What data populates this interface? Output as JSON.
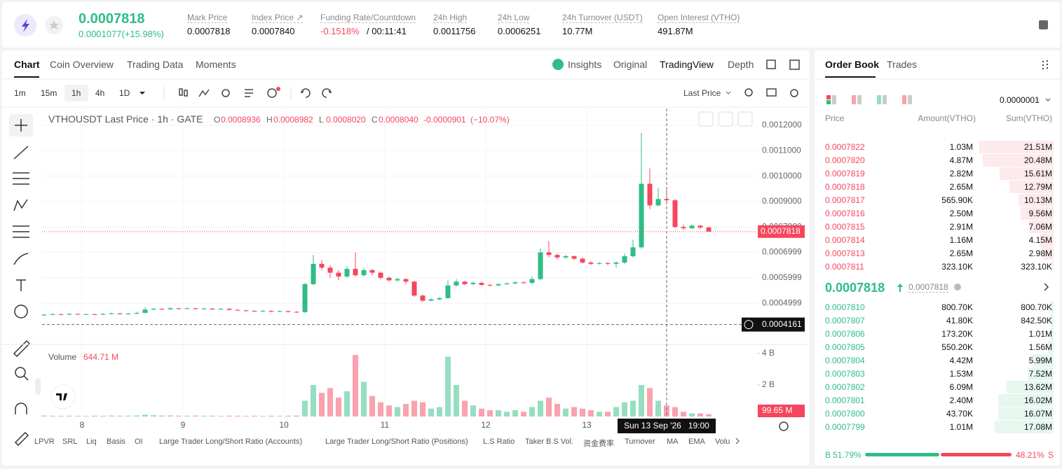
{
  "header": {
    "price": "0.0007818",
    "change": "0.0001077(+15.98%)",
    "stats": [
      {
        "label": "Mark Price",
        "value": "0.0007818"
      },
      {
        "label": "Index Price ↗",
        "value": "0.0007840"
      },
      {
        "label": "Funding Rate/Countdown",
        "value": "-0.1518%",
        "extra": "/ 00:11:41"
      },
      {
        "label": "24h High",
        "value": "0.0011756"
      },
      {
        "label": "24h Low",
        "value": "0.0006251"
      },
      {
        "label": "24h Turnover (USDT)",
        "value": "10.77M"
      },
      {
        "label": "Open Interest (VTHO)",
        "value": "491.87M"
      }
    ]
  },
  "tabs": [
    "Chart",
    "Coin Overview",
    "Trading Data",
    "Moments"
  ],
  "view_tabs": [
    "Insights",
    "Original",
    "TradingView",
    "Depth"
  ],
  "intervals": [
    "1m",
    "15m",
    "1h",
    "4h",
    "1D"
  ],
  "price_source": "Last Price",
  "legend": {
    "symbol": "VTHOUSDT Last Price · 1h · GATE",
    "items": [
      {
        "label": "O",
        "value": "0.0008936"
      },
      {
        "label": "H",
        "value": "0.0008982"
      },
      {
        "label": "L",
        "value": "0.0008020"
      },
      {
        "label": "C",
        "value": "0.0008040"
      }
    ],
    "change": "-0.0000901",
    "change_pct": "(−10.07%)",
    "volume_label": "Volume",
    "volume_value": "644.71 M"
  },
  "chart_data": {
    "type": "candlestick",
    "up_color": "#2ebd85",
    "down_color": "#f6465d",
    "grid": true,
    "xlim": [
      -0.5,
      169.5
    ],
    "xticks": [
      {
        "value": 9,
        "label": "8"
      },
      {
        "value": 33,
        "label": "9"
      },
      {
        "value": 57,
        "label": "10"
      },
      {
        "value": 81,
        "label": "11"
      },
      {
        "value": 105,
        "label": "12"
      },
      {
        "value": 129,
        "label": "13"
      }
    ],
    "ylim": [
      0.000338,
      0.001266
    ],
    "yticks": [
      {
        "value": 0.0012,
        "label": "0.0012000"
      },
      {
        "value": 0.0011,
        "label": "0.0011000"
      },
      {
        "value": 0.001,
        "label": "0.0010000"
      },
      {
        "value": 0.0009,
        "label": "0.0009000"
      },
      {
        "value": 0.0007999,
        "label": "0.0007999"
      },
      {
        "value": 0.0006999,
        "label": "0.0006999"
      },
      {
        "value": 0.0005999,
        "label": "0.0005999"
      },
      {
        "value": 0.0004999,
        "label": "0.0004999"
      }
    ],
    "volume_ylim": [
      0,
      4440000000
    ],
    "volume_yticks": [
      {
        "value": 4000000000,
        "label": "4 B"
      },
      {
        "value": 2000000000,
        "label": "2 B"
      }
    ],
    "last_price": 0.0007818,
    "crosshair_price": 0.0004161,
    "crosshair_x": 148,
    "crosshair_time": "Sun 13 Sep '26   19:00",
    "last_volume": {
      "value": 99650000,
      "label": "99.65 M"
    },
    "candles": [
      {
        "x": 0,
        "o": 0.000452,
        "h": 0.000458,
        "l": 0.00045,
        "c": 0.000455,
        "v": 60000000
      },
      {
        "x": 2,
        "o": 0.000455,
        "h": 0.00046,
        "l": 0.000453,
        "c": 0.000457,
        "v": 50000000
      },
      {
        "x": 4,
        "o": 0.000457,
        "h": 0.000459,
        "l": 0.000452,
        "c": 0.000455,
        "v": 40000000
      },
      {
        "x": 6,
        "o": 0.000455,
        "h": 0.000461,
        "l": 0.000453,
        "c": 0.000458,
        "v": 50000000
      },
      {
        "x": 8,
        "o": 0.000458,
        "h": 0.00046,
        "l": 0.000454,
        "c": 0.000456,
        "v": 40000000
      },
      {
        "x": 10,
        "o": 0.000456,
        "h": 0.00046,
        "l": 0.000454,
        "c": 0.000457,
        "v": 40000000
      },
      {
        "x": 12,
        "o": 0.000457,
        "h": 0.000459,
        "l": 0.000453,
        "c": 0.000455,
        "v": 50000000
      },
      {
        "x": 14,
        "o": 0.000455,
        "h": 0.000461,
        "l": 0.000453,
        "c": 0.000458,
        "v": 50000000
      },
      {
        "x": 16,
        "o": 0.000458,
        "h": 0.000463,
        "l": 0.000456,
        "c": 0.00046,
        "v": 60000000
      },
      {
        "x": 18,
        "o": 0.00046,
        "h": 0.000462,
        "l": 0.000455,
        "c": 0.000457,
        "v": 50000000
      },
      {
        "x": 20,
        "o": 0.000457,
        "h": 0.000462,
        "l": 0.000455,
        "c": 0.000459,
        "v": 50000000
      },
      {
        "x": 22,
        "o": 0.000459,
        "h": 0.000466,
        "l": 0.000457,
        "c": 0.000462,
        "v": 70000000
      },
      {
        "x": 24,
        "o": 0.000462,
        "h": 0.000485,
        "l": 0.00046,
        "c": 0.000475,
        "v": 120000000
      },
      {
        "x": 26,
        "o": 0.000475,
        "h": 0.000482,
        "l": 0.000472,
        "c": 0.000478,
        "v": 80000000
      },
      {
        "x": 28,
        "o": 0.000478,
        "h": 0.00048,
        "l": 0.000473,
        "c": 0.000476,
        "v": 60000000
      },
      {
        "x": 30,
        "o": 0.000476,
        "h": 0.000484,
        "l": 0.000474,
        "c": 0.00048,
        "v": 70000000
      },
      {
        "x": 32,
        "o": 0.00048,
        "h": 0.000482,
        "l": 0.000475,
        "c": 0.000478,
        "v": 50000000
      },
      {
        "x": 34,
        "o": 0.000478,
        "h": 0.000483,
        "l": 0.000476,
        "c": 0.00048,
        "v": 50000000
      },
      {
        "x": 36,
        "o": 0.00048,
        "h": 0.000482,
        "l": 0.000474,
        "c": 0.000477,
        "v": 60000000
      },
      {
        "x": 38,
        "o": 0.000477,
        "h": 0.000482,
        "l": 0.000475,
        "c": 0.000479,
        "v": 50000000
      },
      {
        "x": 40,
        "o": 0.000479,
        "h": 0.000481,
        "l": 0.000473,
        "c": 0.000476,
        "v": 50000000
      },
      {
        "x": 42,
        "o": 0.000476,
        "h": 0.000481,
        "l": 0.000474,
        "c": 0.000478,
        "v": 40000000
      },
      {
        "x": 44,
        "o": 0.000478,
        "h": 0.00048,
        "l": 0.000471,
        "c": 0.000474,
        "v": 50000000
      },
      {
        "x": 46,
        "o": 0.000474,
        "h": 0.000476,
        "l": 0.000469,
        "c": 0.000472,
        "v": 50000000
      },
      {
        "x": 48,
        "o": 0.000472,
        "h": 0.000474,
        "l": 0.000467,
        "c": 0.00047,
        "v": 40000000
      },
      {
        "x": 50,
        "o": 0.00047,
        "h": 0.000472,
        "l": 0.000465,
        "c": 0.000468,
        "v": 50000000
      },
      {
        "x": 52,
        "o": 0.000468,
        "h": 0.000473,
        "l": 0.000466,
        "c": 0.00047,
        "v": 40000000
      },
      {
        "x": 54,
        "o": 0.00047,
        "h": 0.000472,
        "l": 0.000464,
        "c": 0.000467,
        "v": 50000000
      },
      {
        "x": 56,
        "o": 0.000467,
        "h": 0.000472,
        "l": 0.000465,
        "c": 0.000469,
        "v": 40000000
      },
      {
        "x": 58,
        "o": 0.000469,
        "h": 0.000471,
        "l": 0.000463,
        "c": 0.000466,
        "v": 50000000
      },
      {
        "x": 60,
        "o": 0.000466,
        "h": 0.000469,
        "l": 0.000462,
        "c": 0.000465,
        "v": 60000000
      },
      {
        "x": 62,
        "o": 0.000465,
        "h": 0.00058,
        "l": 0.000462,
        "c": 0.000575,
        "v": 1000000000
      },
      {
        "x": 64,
        "o": 0.000575,
        "h": 0.00069,
        "l": 0.00057,
        "c": 0.000655,
        "v": 2000000000
      },
      {
        "x": 66,
        "o": 0.000655,
        "h": 0.00067,
        "l": 0.00063,
        "c": 0.00064,
        "v": 1500000000
      },
      {
        "x": 68,
        "o": 0.00064,
        "h": 0.00065,
        "l": 0.0006,
        "c": 0.00062,
        "v": 1800000000
      },
      {
        "x": 70,
        "o": 0.00062,
        "h": 0.00063,
        "l": 0.00059,
        "c": 0.000605,
        "v": 1200000000
      },
      {
        "x": 72,
        "o": 0.000605,
        "h": 0.000645,
        "l": 0.0006,
        "c": 0.000635,
        "v": 1600000000
      },
      {
        "x": 74,
        "o": 0.000635,
        "h": 0.0007,
        "l": 0.000605,
        "c": 0.00061,
        "v": 3900000000
      },
      {
        "x": 76,
        "o": 0.00061,
        "h": 0.00064,
        "l": 0.000605,
        "c": 0.00063,
        "v": 2200000000
      },
      {
        "x": 78,
        "o": 0.00063,
        "h": 0.000635,
        "l": 0.00061,
        "c": 0.00062,
        "v": 1300000000
      },
      {
        "x": 80,
        "o": 0.00062,
        "h": 0.000625,
        "l": 0.000595,
        "c": 0.0006,
        "v": 900000000
      },
      {
        "x": 82,
        "o": 0.0006,
        "h": 0.000605,
        "l": 0.000585,
        "c": 0.00059,
        "v": 700000000
      },
      {
        "x": 84,
        "o": 0.00059,
        "h": 0.0006,
        "l": 0.000585,
        "c": 0.000595,
        "v": 600000000
      },
      {
        "x": 86,
        "o": 0.000595,
        "h": 0.000598,
        "l": 0.000575,
        "c": 0.000585,
        "v": 800000000
      },
      {
        "x": 88,
        "o": 0.000585,
        "h": 0.000588,
        "l": 0.000525,
        "c": 0.00053,
        "v": 1000000000
      },
      {
        "x": 90,
        "o": 0.00053,
        "h": 0.000535,
        "l": 0.000505,
        "c": 0.00051,
        "v": 900000000
      },
      {
        "x": 92,
        "o": 0.00051,
        "h": 0.00052,
        "l": 0.000508,
        "c": 0.000515,
        "v": 500000000
      },
      {
        "x": 94,
        "o": 0.000515,
        "h": 0.000525,
        "l": 0.000512,
        "c": 0.00052,
        "v": 600000000
      },
      {
        "x": 96,
        "o": 0.00052,
        "h": 0.00059,
        "l": 0.000518,
        "c": 0.00057,
        "v": 3800000000
      },
      {
        "x": 98,
        "o": 0.00057,
        "h": 0.000595,
        "l": 0.000565,
        "c": 0.000585,
        "v": 2000000000
      },
      {
        "x": 100,
        "o": 0.000585,
        "h": 0.000588,
        "l": 0.00057,
        "c": 0.000575,
        "v": 1000000000
      },
      {
        "x": 102,
        "o": 0.000575,
        "h": 0.000585,
        "l": 0.00057,
        "c": 0.00058,
        "v": 700000000
      },
      {
        "x": 104,
        "o": 0.00058,
        "h": 0.000584,
        "l": 0.000568,
        "c": 0.000572,
        "v": 500000000
      },
      {
        "x": 106,
        "o": 0.000572,
        "h": 0.000576,
        "l": 0.000566,
        "c": 0.00057,
        "v": 400000000
      },
      {
        "x": 108,
        "o": 0.00057,
        "h": 0.000578,
        "l": 0.000567,
        "c": 0.000575,
        "v": 400000000
      },
      {
        "x": 110,
        "o": 0.000575,
        "h": 0.000582,
        "l": 0.000572,
        "c": 0.000578,
        "v": 300000000
      },
      {
        "x": 112,
        "o": 0.000578,
        "h": 0.000586,
        "l": 0.000575,
        "c": 0.000582,
        "v": 400000000
      },
      {
        "x": 114,
        "o": 0.000582,
        "h": 0.000585,
        "l": 0.000576,
        "c": 0.00058,
        "v": 300000000
      },
      {
        "x": 116,
        "o": 0.00058,
        "h": 0.000605,
        "l": 0.000575,
        "c": 0.000595,
        "v": 600000000
      },
      {
        "x": 118,
        "o": 0.000595,
        "h": 0.000715,
        "l": 0.00059,
        "c": 0.0007,
        "v": 1000000000
      },
      {
        "x": 120,
        "o": 0.0007,
        "h": 0.000745,
        "l": 0.00068,
        "c": 0.00069,
        "v": 1200000000
      },
      {
        "x": 122,
        "o": 0.00069,
        "h": 0.000695,
        "l": 0.000672,
        "c": 0.00068,
        "v": 800000000
      },
      {
        "x": 124,
        "o": 0.00068,
        "h": 0.00069,
        "l": 0.000675,
        "c": 0.000685,
        "v": 500000000
      },
      {
        "x": 126,
        "o": 0.000685,
        "h": 0.000688,
        "l": 0.00067,
        "c": 0.000675,
        "v": 600000000
      },
      {
        "x": 128,
        "o": 0.000675,
        "h": 0.00068,
        "l": 0.000655,
        "c": 0.00066,
        "v": 500000000
      },
      {
        "x": 130,
        "o": 0.00066,
        "h": 0.000665,
        "l": 0.00065,
        "c": 0.000655,
        "v": 400000000
      },
      {
        "x": 132,
        "o": 0.000655,
        "h": 0.000662,
        "l": 0.000652,
        "c": 0.000658,
        "v": 300000000
      },
      {
        "x": 134,
        "o": 0.000658,
        "h": 0.000662,
        "l": 0.00065,
        "c": 0.000655,
        "v": 300000000
      },
      {
        "x": 136,
        "o": 0.000655,
        "h": 0.000665,
        "l": 0.00064,
        "c": 0.00066,
        "v": 600000000
      },
      {
        "x": 138,
        "o": 0.00066,
        "h": 0.000695,
        "l": 0.000655,
        "c": 0.000685,
        "v": 900000000
      },
      {
        "x": 140,
        "o": 0.000685,
        "h": 0.00075,
        "l": 0.00068,
        "c": 0.00072,
        "v": 1000000000
      },
      {
        "x": 142,
        "o": 0.00072,
        "h": 0.00117,
        "l": 0.000715,
        "c": 0.00097,
        "v": 2000000000
      },
      {
        "x": 144,
        "o": 0.00097,
        "h": 0.00103,
        "l": 0.00087,
        "c": 0.000885,
        "v": 1800000000
      },
      {
        "x": 146,
        "o": 0.000885,
        "h": 0.000955,
        "l": 0.00088,
        "c": 0.00091,
        "v": 1000000000
      },
      {
        "x": 148,
        "o": 0.00091,
        "h": 0.00095,
        "l": 0.00089,
        "c": 0.000905,
        "v": 700000000
      },
      {
        "x": 150,
        "o": 0.000905,
        "h": 0.00091,
        "l": 0.000795,
        "c": 0.0008,
        "v": 600000000
      },
      {
        "x": 152,
        "o": 0.0008,
        "h": 0.00081,
        "l": 0.000788,
        "c": 0.000795,
        "v": 300000000
      },
      {
        "x": 154,
        "o": 0.000795,
        "h": 0.00081,
        "l": 0.00079,
        "c": 0.000805,
        "v": 200000000
      },
      {
        "x": 156,
        "o": 0.000805,
        "h": 0.000808,
        "l": 0.000792,
        "c": 0.000798,
        "v": 200000000
      },
      {
        "x": 158,
        "o": 0.000798,
        "h": 0.000802,
        "l": 0.00078,
        "c": 0.0007818,
        "v": 150000000
      }
    ]
  },
  "indicators": [
    "LPVR",
    "SRL",
    "Liq",
    "Basis",
    "OI",
    "Large Trader Long/Short Ratio (Accounts)",
    "Large Trader Long/Short Ratio (Positions)",
    "L.S Ratio",
    "Taker B.S Vol.",
    "资金费率",
    "Turnover",
    "MA",
    "EMA",
    "Volu"
  ],
  "order_book": {
    "tabs": [
      "Order Book",
      "Trades"
    ],
    "precision": "0.0000001",
    "columns": [
      "Price",
      "Amount(VTHO)",
      "Sum(VTHO)"
    ],
    "asks": [
      [
        "0.0007822",
        "1.03M",
        "21.51M"
      ],
      [
        "0.0007820",
        "4.87M",
        "20.48M"
      ],
      [
        "0.0007819",
        "2.82M",
        "15.61M"
      ],
      [
        "0.0007818",
        "2.65M",
        "12.79M"
      ],
      [
        "0.0007817",
        "565.90K",
        "10.13M"
      ],
      [
        "0.0007816",
        "2.50M",
        "9.56M"
      ],
      [
        "0.0007815",
        "2.91M",
        "7.06M"
      ],
      [
        "0.0007814",
        "1.16M",
        "4.15M"
      ],
      [
        "0.0007813",
        "2.65M",
        "2.98M"
      ],
      [
        "0.0007811",
        "323.10K",
        "323.10K"
      ]
    ],
    "last_price": "0.0007818",
    "mark_price": "0.0007818",
    "bids": [
      [
        "0.0007810",
        "800.70K",
        "800.70K"
      ],
      [
        "0.0007807",
        "41.80K",
        "842.50K"
      ],
      [
        "0.0007806",
        "173.20K",
        "1.01M"
      ],
      [
        "0.0007805",
        "550.20K",
        "1.56M"
      ],
      [
        "0.0007804",
        "4.42M",
        "5.99M"
      ],
      [
        "0.0007803",
        "1.53M",
        "7.52M"
      ],
      [
        "0.0007802",
        "6.09M",
        "13.62M"
      ],
      [
        "0.0007801",
        "2.40M",
        "16.02M"
      ],
      [
        "0.0007800",
        "43.70K",
        "16.07M"
      ],
      [
        "0.0007799",
        "1.01M",
        "17.08M"
      ]
    ],
    "buy_label": "B",
    "buy": {
      "value": 51.79,
      "label": "51.79%"
    },
    "sell": {
      "value": 48.21,
      "label": "48.21%"
    },
    "sell_label": "S"
  }
}
